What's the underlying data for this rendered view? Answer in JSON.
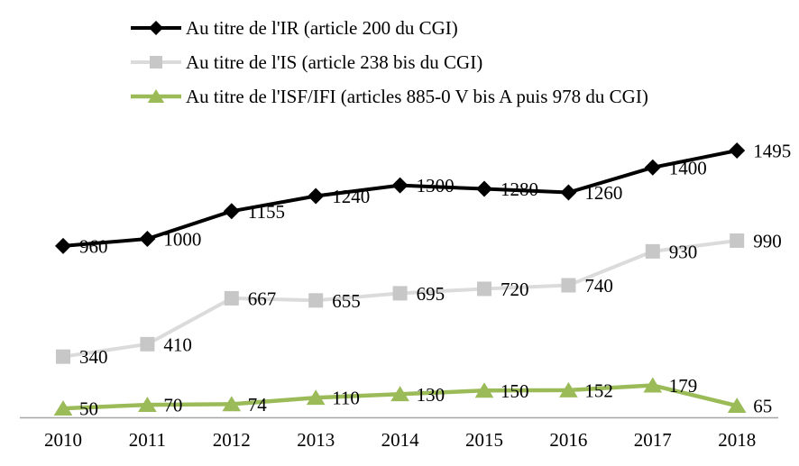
{
  "chart_data": {
    "type": "line",
    "x": [
      "2010",
      "2011",
      "2012",
      "2013",
      "2014",
      "2015",
      "2016",
      "2017",
      "2018"
    ],
    "series": [
      {
        "id": "ir",
        "name": "Au titre de l'IR (article 200 du CGI)",
        "values": [
          960,
          1000,
          1155,
          1240,
          1300,
          1280,
          1260,
          1400,
          1495
        ],
        "color": "#000000",
        "marker": "diamond",
        "marker_color": "#000000",
        "line_width": 4
      },
      {
        "id": "is",
        "name": "Au titre de l'IS (article 238 bis du CGI)",
        "values": [
          340,
          410,
          667,
          655,
          695,
          720,
          740,
          930,
          990
        ],
        "color": "#DBDBDB",
        "marker": "square",
        "marker_color": "#C7C7C7",
        "line_width": 4
      },
      {
        "id": "isf-ifi",
        "name": "Au titre de l'ISF/IFI (articles 885-0 V bis A puis 978 du CGI)",
        "values": [
          50,
          70,
          74,
          110,
          130,
          150,
          152,
          179,
          65
        ],
        "color": "#9BBB59",
        "marker": "triangle",
        "marker_color": "#9BBB59",
        "line_width": 4.5
      }
    ],
    "title": "",
    "xlabel": "",
    "ylabel": "",
    "ylim": [
      0,
      1600
    ],
    "grid": false,
    "legend_position": "top-left",
    "data_labels": true,
    "axis_color": "#A6A6A6",
    "text_color": "#000000",
    "background": "#FFFFFF"
  }
}
